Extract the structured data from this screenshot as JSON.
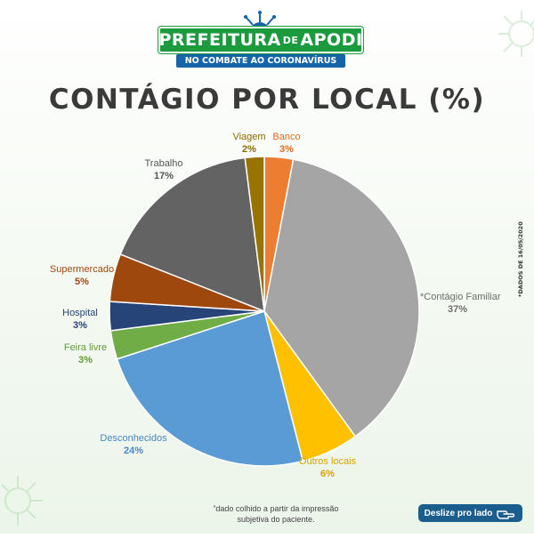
{
  "logo": {
    "title_left": "PREFEITURA",
    "title_de": "DE",
    "title_right": "APODI",
    "subtitle": "NO COMBATE AO CORONAVÍRUS"
  },
  "side_note": "*DADOS DE 16/05/2020",
  "footnote": {
    "asterisk": "*",
    "line1": "dado colhido a partir da impressão",
    "line2": "subjetiva do paciente."
  },
  "swipe_button": {
    "label": "Deslize pro lado",
    "icon": "pointing-hand-icon"
  },
  "colors": {
    "accent_green": "#1c9b3e",
    "accent_blue": "#1565a8",
    "button_blue": "#1b5e8e"
  },
  "chart_data": {
    "type": "pie",
    "title": "CONTÁGIO POR LOCAL (%)",
    "start_angle_deg": 0,
    "direction": "clockwise",
    "slices": [
      {
        "name": "Banco",
        "display_name": "Banco",
        "value": 3,
        "label": "3%",
        "color": "#ed7d31",
        "label_color": "#d9691e"
      },
      {
        "name": "Contágio Familiar",
        "display_name": "*Contágio Familiar",
        "value": 37,
        "label": "37%",
        "color": "#a5a5a5",
        "label_color": "#6e6e6e"
      },
      {
        "name": "Outros locais",
        "display_name": "Outros locais",
        "value": 6,
        "label": "6%",
        "color": "#ffc000",
        "label_color": "#d9a100"
      },
      {
        "name": "Desconhecidos",
        "display_name": "Desconhecidos",
        "value": 24,
        "label": "24%",
        "color": "#5b9bd5",
        "label_color": "#4a86bf"
      },
      {
        "name": "Feira livre",
        "display_name": "Feira livre",
        "value": 3,
        "label": "3%",
        "color": "#70ad47",
        "label_color": "#5e9c36"
      },
      {
        "name": "Hospital",
        "display_name": "Hospital",
        "value": 3,
        "label": "3%",
        "color": "#264478",
        "label_color": "#264478"
      },
      {
        "name": "Supermercado",
        "display_name": "Supermercado",
        "value": 5,
        "label": "5%",
        "color": "#9e480e",
        "label_color": "#9e480e"
      },
      {
        "name": "Trabalho",
        "display_name": "Trabalho",
        "value": 17,
        "label": "17%",
        "color": "#636363",
        "label_color": "#555555"
      },
      {
        "name": "Viagem",
        "display_name": "Viagem",
        "value": 2,
        "label": "2%",
        "color": "#997300",
        "label_color": "#8a6a00"
      }
    ]
  }
}
